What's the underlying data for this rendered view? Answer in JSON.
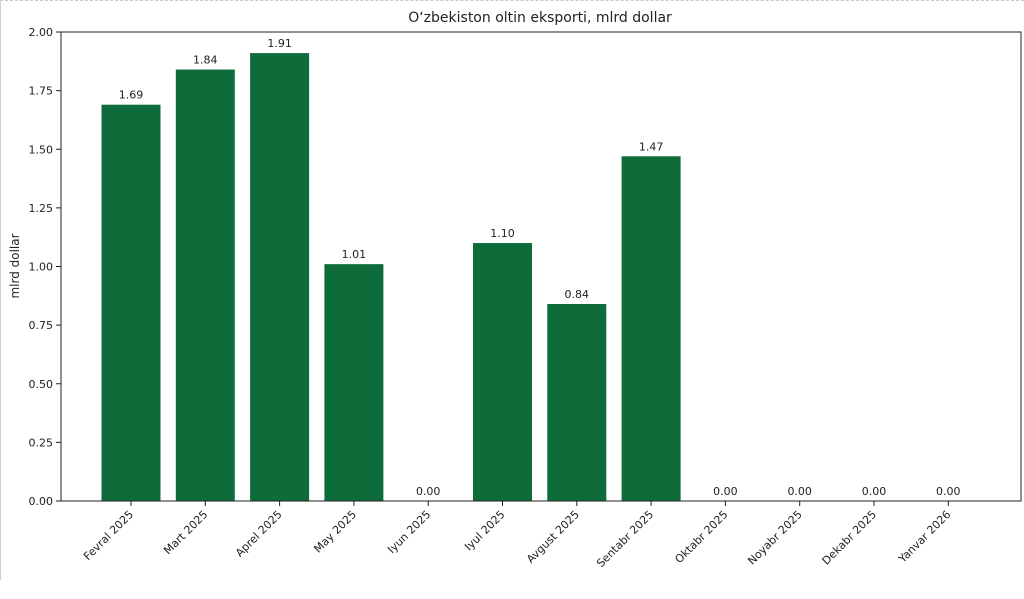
{
  "chart_data": {
    "type": "bar",
    "title": "O‘zbekiston oltin eksporti, mlrd dollar",
    "xlabel": "",
    "ylabel": "mlrd dollar",
    "ylim": [
      0,
      2.0
    ],
    "yticks": [
      "0.00",
      "0.25",
      "0.50",
      "0.75",
      "1.00",
      "1.25",
      "1.50",
      "1.75",
      "2.00"
    ],
    "categories": [
      "Fevral 2025",
      "Mart 2025",
      "Aprel 2025",
      "May 2025",
      "Iyun 2025",
      "Iyul 2025",
      "Avgust 2025",
      "Sentabr 2025",
      "Oktabr 2025",
      "Noyabr 2025",
      "Dekabr 2025",
      "Yanvar 2026"
    ],
    "values": [
      1.69,
      1.84,
      1.91,
      1.01,
      0.0,
      1.1,
      0.84,
      1.47,
      0.0,
      0.0,
      0.0,
      0.0
    ],
    "value_labels": [
      "1.69",
      "1.84",
      "1.91",
      "1.01",
      "0.00",
      "1.10",
      "0.84",
      "1.47",
      "0.00",
      "0.00",
      "0.00",
      "0.00"
    ],
    "bar_color": "#0e6b3a",
    "grid": false,
    "legend": "none"
  }
}
